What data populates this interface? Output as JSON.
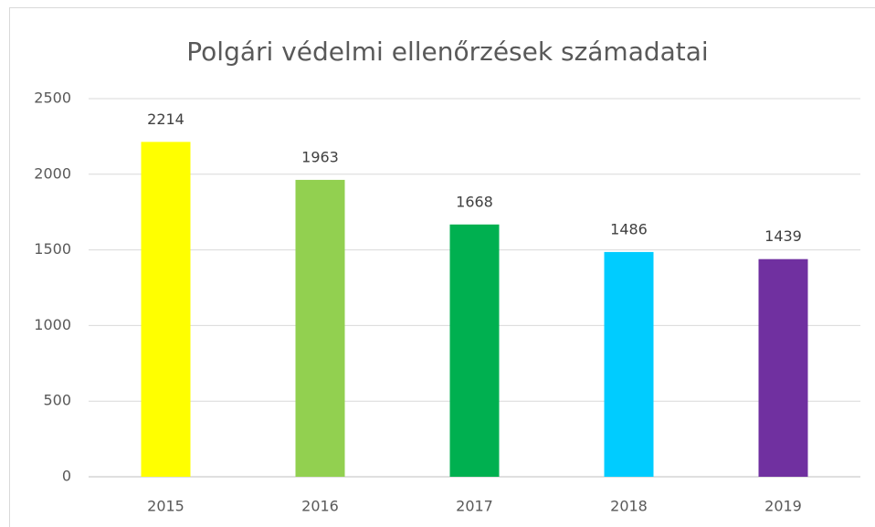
{
  "chart_data": {
    "type": "bar",
    "title": "Polgári védelmi ellenőrzések számadatai",
    "categories": [
      "2015",
      "2016",
      "2017",
      "2018",
      "2019"
    ],
    "values": [
      2214,
      1963,
      1668,
      1486,
      1439
    ],
    "colors": [
      "#ffff00",
      "#92d050",
      "#00b050",
      "#00ccff",
      "#7030a0"
    ],
    "ylim": [
      0,
      2500
    ],
    "yticks": [
      0,
      500,
      1000,
      1500,
      2000,
      2500
    ],
    "grid": true
  }
}
